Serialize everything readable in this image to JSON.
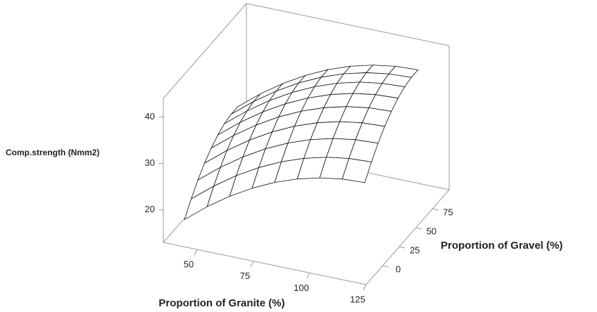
{
  "chart_data": {
    "type": "surface",
    "xlabel": "Proportion of Granite (%)",
    "ylabel": "Proportion of Gravel (%)",
    "zlabel": "Comp.strength (Nmm2)",
    "x": [
      40,
      50,
      60,
      70,
      80,
      90,
      100,
      110,
      120
    ],
    "y": [
      -10,
      0,
      10,
      20,
      30,
      40,
      50,
      60,
      70
    ],
    "z": [
      [
        16,
        19.75,
        23,
        25.75,
        28,
        29.75,
        31,
        31.75,
        32
      ],
      [
        18.8,
        22.55,
        25.8,
        28.55,
        30.8,
        32.55,
        33.8,
        34.55,
        34.8
      ],
      [
        21.2,
        24.95,
        28.2,
        30.95,
        33.2,
        34.95,
        36.2,
        36.95,
        37.2
      ],
      [
        23.2,
        26.95,
        30.2,
        32.95,
        35.2,
        36.95,
        38.2,
        38.95,
        39.2
      ],
      [
        24.8,
        28.55,
        31.8,
        34.55,
        36.8,
        38.55,
        39.8,
        40.55,
        40.8
      ],
      [
        26,
        29.75,
        33,
        35.75,
        38,
        39.75,
        41,
        41.75,
        42
      ],
      [
        26.8,
        30.55,
        33.8,
        36.55,
        38.8,
        40.55,
        41.8,
        42.55,
        42.8
      ],
      [
        27.2,
        30.95,
        34.2,
        36.95,
        39.2,
        40.95,
        42.2,
        42.95,
        43.2
      ],
      [
        27.2,
        30.95,
        34.2,
        36.95,
        39.2,
        40.95,
        42.2,
        42.95,
        43.2
      ]
    ],
    "xlim": [
      35,
      125
    ],
    "xticks": [
      50,
      75,
      100,
      125
    ],
    "ylim": [
      -25,
      100
    ],
    "yticks": [
      0,
      25,
      50,
      75
    ],
    "zlim": [
      13,
      44
    ],
    "zticks": [
      20,
      30,
      40
    ],
    "color": "#ffffff"
  }
}
